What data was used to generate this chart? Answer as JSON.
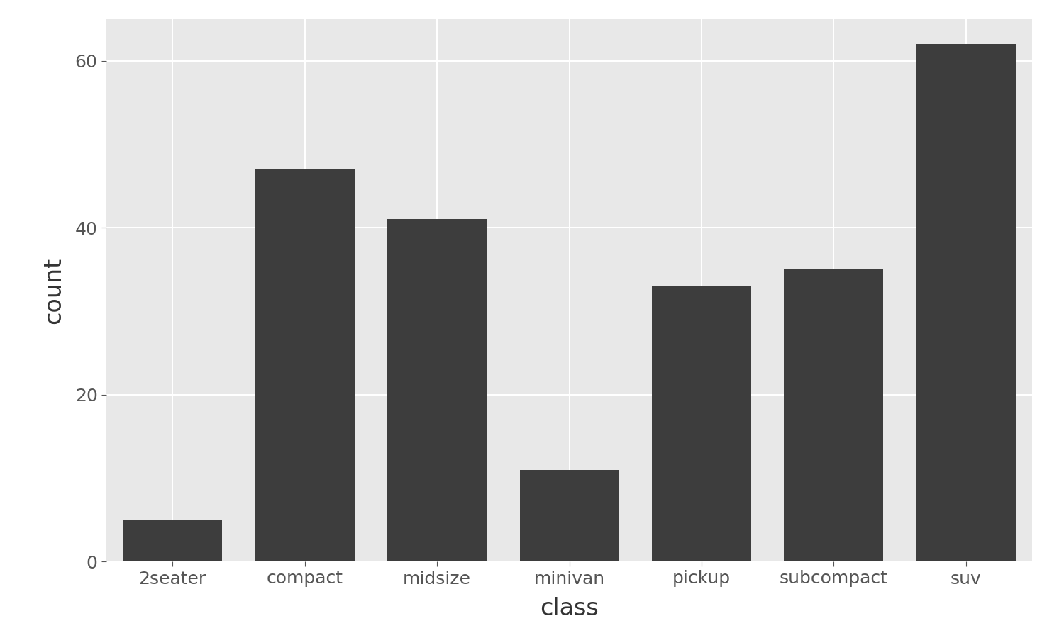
{
  "categories": [
    "2seater",
    "compact",
    "midsize",
    "minivan",
    "pickup",
    "subcompact",
    "suv"
  ],
  "values": [
    5,
    47,
    41,
    11,
    33,
    35,
    62
  ],
  "bar_color": "#3d3d3d",
  "figure_bg": "#FFFFFF",
  "panel_bg": "#E8E8E8",
  "title": "",
  "xlabel": "class",
  "ylabel": "count",
  "xlabel_fontsize": 24,
  "ylabel_fontsize": 24,
  "tick_label_fontsize": 18,
  "yticks": [
    0,
    20,
    40,
    60
  ],
  "ylim": [
    0,
    65
  ],
  "grid_color": "#FFFFFF",
  "grid_linewidth": 1.5,
  "bar_width": 0.75,
  "tick_color": "#555555",
  "label_color": "#333333"
}
